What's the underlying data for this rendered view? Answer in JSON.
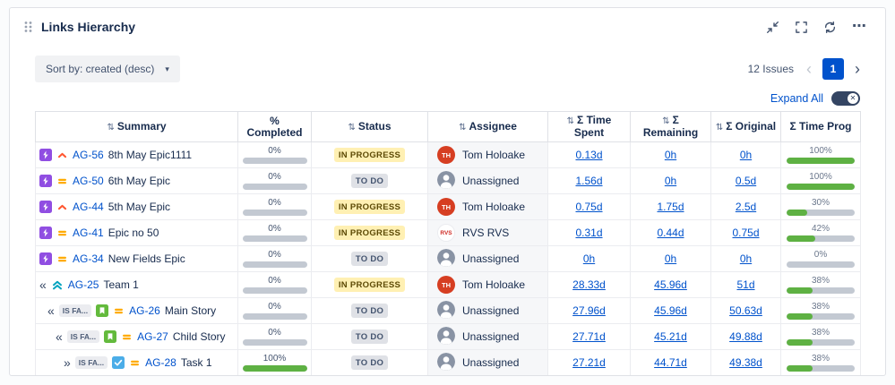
{
  "colors": {
    "accent_blue": "#0052cc",
    "bar_green": "#5eb143",
    "bar_track": "#c3c9d2",
    "status_inprogress_bg": "#fff0b3",
    "status_todo_bg": "#dfe1e6",
    "epic_purple": "#904ee2",
    "story_green": "#63ba3c",
    "task_blue": "#4bade8",
    "team_teal": "#00a3bf",
    "priority_highest_red": "#ff5630",
    "priority_medium_orange": "#ffab00",
    "avatar_red": "#d63e22"
  },
  "glyphs": {
    "sort": "⇅",
    "chevron_down": "▾",
    "prev": "‹",
    "next": "›",
    "more": "⋯",
    "toggle_x": "✕"
  },
  "panel": {
    "title": "Links Hierarchy",
    "toolbar_buttons": [
      "collapse",
      "fullscreen",
      "refresh",
      "more"
    ]
  },
  "controls": {
    "sort_label": "Sort by: created (desc)",
    "issues_count": "12 Issues",
    "page": "1",
    "expand_all_label": "Expand All"
  },
  "table": {
    "columns": [
      {
        "label": "Summary",
        "sortable": true
      },
      {
        "label": "% Completed",
        "sortable": false
      },
      {
        "label": "Status",
        "sortable": true
      },
      {
        "label": "Assignee",
        "sortable": true
      },
      {
        "label": "Σ Time Spent",
        "sortable": true
      },
      {
        "label": "Σ Remaining",
        "sortable": true
      },
      {
        "label": "Σ Original",
        "sortable": true
      },
      {
        "label": "Σ Time Prog",
        "sortable": false
      }
    ],
    "rows": [
      {
        "indent": 0,
        "chevron": "",
        "link_label": "",
        "type": "epic",
        "priority": "highest",
        "key": "AG-56",
        "summary": "8th May Epic1111",
        "completed_pct": "0%",
        "completed_val": 0,
        "status": "IN PROGRESS",
        "status_kind": "inprogress",
        "assignee": "Tom Holoake",
        "avatar": "TH",
        "time_spent": "0.13d",
        "remaining": "0h",
        "original": "0h",
        "time_prog_pct": "100%",
        "time_prog_val": 100
      },
      {
        "indent": 0,
        "chevron": "",
        "link_label": "",
        "type": "epic",
        "priority": "medium",
        "key": "AG-50",
        "summary": "6th May Epic",
        "completed_pct": "0%",
        "completed_val": 0,
        "status": "TO DO",
        "status_kind": "todo",
        "assignee": "Unassigned",
        "avatar": "unassigned",
        "time_spent": "1.56d",
        "remaining": "0h",
        "original": "0.5d",
        "time_prog_pct": "100%",
        "time_prog_val": 100
      },
      {
        "indent": 0,
        "chevron": "",
        "link_label": "",
        "type": "epic",
        "priority": "highest",
        "key": "AG-44",
        "summary": "5th May Epic",
        "completed_pct": "0%",
        "completed_val": 0,
        "status": "IN PROGRESS",
        "status_kind": "inprogress",
        "assignee": "Tom Holoake",
        "avatar": "TH",
        "time_spent": "0.75d",
        "remaining": "1.75d",
        "original": "2.5d",
        "time_prog_pct": "30%",
        "time_prog_val": 30
      },
      {
        "indent": 0,
        "chevron": "",
        "link_label": "",
        "type": "epic",
        "priority": "medium",
        "key": "AG-41",
        "summary": "Epic no 50",
        "completed_pct": "0%",
        "completed_val": 0,
        "status": "IN PROGRESS",
        "status_kind": "inprogress",
        "assignee": "RVS RVS",
        "avatar": "RVS",
        "time_spent": "0.31d",
        "remaining": "0.44d",
        "original": "0.75d",
        "time_prog_pct": "42%",
        "time_prog_val": 42
      },
      {
        "indent": 0,
        "chevron": "",
        "link_label": "",
        "type": "epic",
        "priority": "medium",
        "key": "AG-34",
        "summary": "New Fields Epic",
        "completed_pct": "0%",
        "completed_val": 0,
        "status": "TO DO",
        "status_kind": "todo",
        "assignee": "Unassigned",
        "avatar": "unassigned",
        "time_spent": "0h",
        "remaining": "0h",
        "original": "0h",
        "time_prog_pct": "0%",
        "time_prog_val": 0
      },
      {
        "indent": 0,
        "chevron": "«",
        "link_label": "",
        "type": "team",
        "priority": "none",
        "key": "AG-25",
        "summary": "Team 1",
        "completed_pct": "0%",
        "completed_val": 0,
        "status": "IN PROGRESS",
        "status_kind": "inprogress",
        "assignee": "Tom Holoake",
        "avatar": "TH",
        "time_spent": "28.33d",
        "remaining": "45.96d",
        "original": "51d",
        "time_prog_pct": "38%",
        "time_prog_val": 38
      },
      {
        "indent": 1,
        "chevron": "«",
        "link_label": "IS FA...",
        "type": "story",
        "priority": "medium",
        "key": "AG-26",
        "summary": "Main Story",
        "completed_pct": "0%",
        "completed_val": 0,
        "status": "TO DO",
        "status_kind": "todo",
        "assignee": "Unassigned",
        "avatar": "unassigned",
        "time_spent": "27.96d",
        "remaining": "45.96d",
        "original": "50.63d",
        "time_prog_pct": "38%",
        "time_prog_val": 38
      },
      {
        "indent": 2,
        "chevron": "«",
        "link_label": "IS FA...",
        "type": "story",
        "priority": "medium",
        "key": "AG-27",
        "summary": "Child Story",
        "completed_pct": "0%",
        "completed_val": 0,
        "status": "TO DO",
        "status_kind": "todo",
        "assignee": "Unassigned",
        "avatar": "unassigned",
        "time_spent": "27.71d",
        "remaining": "45.21d",
        "original": "49.88d",
        "time_prog_pct": "38%",
        "time_prog_val": 38
      },
      {
        "indent": 3,
        "chevron": "»",
        "link_label": "IS FA...",
        "type": "task",
        "priority": "medium",
        "key": "AG-28",
        "summary": "Task 1",
        "completed_pct": "100%",
        "completed_val": 100,
        "status": "TO DO",
        "status_kind": "todo",
        "assignee": "Unassigned",
        "avatar": "unassigned",
        "time_spent": "27.21d",
        "remaining": "44.71d",
        "original": "49.38d",
        "time_prog_pct": "38%",
        "time_prog_val": 38
      }
    ]
  }
}
